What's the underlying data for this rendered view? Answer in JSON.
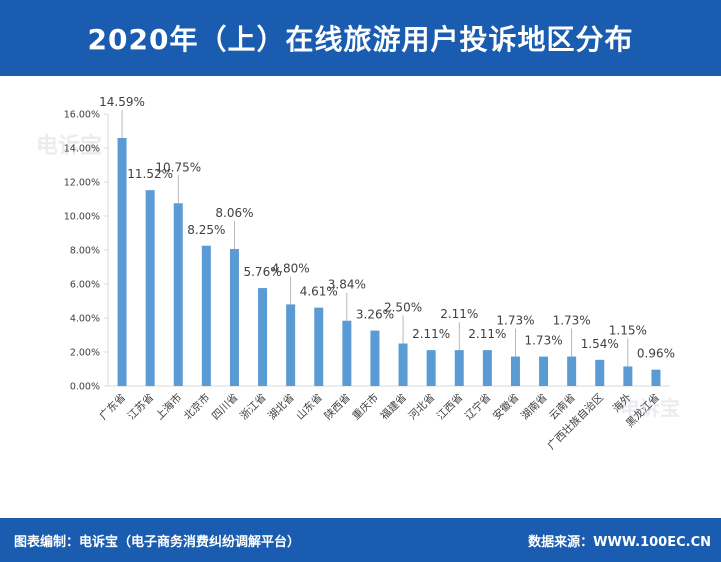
{
  "header": {
    "title": "2020年（上）在线旅游用户投诉地区分布"
  },
  "footer": {
    "left": "图表编制：电诉宝（电子商务消费纠纷调解平台）",
    "right": "数据来源：WWW.100EC.CN"
  },
  "watermark": {
    "text": "电诉宝"
  },
  "colors": {
    "bar": "#5b9bd5",
    "header": "#1a5db0",
    "axis": "#d9d9d9",
    "text": "#404040"
  },
  "chart_data": {
    "type": "bar",
    "title": "2020年（上）在线旅游用户投诉地区分布",
    "xlabel": "",
    "ylabel": "",
    "ylim": [
      0,
      16
    ],
    "yticks": [
      "0.00%",
      "2.00%",
      "4.00%",
      "6.00%",
      "8.00%",
      "10.00%",
      "12.00%",
      "14.00%",
      "16.00%"
    ],
    "grid": false,
    "categories": [
      "广东省",
      "江苏省",
      "上海市",
      "北京市",
      "四川省",
      "浙江省",
      "湖北省",
      "山东省",
      "陕西省",
      "重庆市",
      "福建省",
      "河北省",
      "江西省",
      "辽宁省",
      "安徽省",
      "湖南省",
      "云南省",
      "广西壮族自治区",
      "海外",
      "黑龙江省"
    ],
    "values": [
      14.59,
      11.52,
      10.75,
      8.25,
      8.06,
      5.76,
      4.8,
      4.61,
      3.84,
      3.26,
      2.5,
      2.11,
      2.11,
      2.11,
      1.73,
      1.73,
      1.73,
      1.54,
      1.15,
      0.96
    ],
    "labels": [
      "14.59%",
      "11.52%",
      "10.75%",
      "8.25%",
      "8.06%",
      "5.76%",
      "4.80%",
      "4.61%",
      "3.84%",
      "3.26%",
      "2.50%",
      "2.11%",
      "2.11%",
      "2.11%",
      "1.73%",
      "1.73%",
      "1.73%",
      "1.54%",
      "1.15%",
      "0.96%"
    ]
  }
}
